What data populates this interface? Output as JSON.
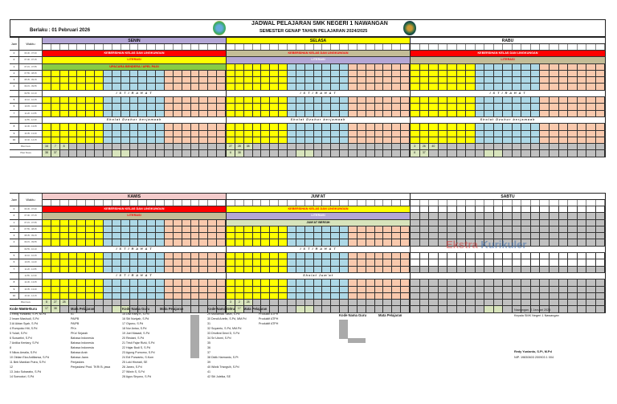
{
  "header": {
    "berlaku": "Berlaku : 01 Pebruari 2026",
    "title": "JADWAL PELAJARAN SMK NEGERI 1 NAWANGAN",
    "subtitle": "SEMESTER GENAP TAHUN PELAJARAN 2024/2025"
  },
  "columns": {
    "jam": "Jam",
    "waktu": "Waktu"
  },
  "days_top": [
    "SENIN",
    "SELASA",
    "RABU"
  ],
  "days_bottom": [
    "KAMIS",
    "JUM'AT",
    "SABTU"
  ],
  "bands": {
    "kebersihan": "KEBERSIHAN KELAS DAN LINGKUNGAN",
    "literasi": "LITERASI",
    "upacara": "UPACARA BENDERA / APEL PAGI",
    "istirahat": "I S T I R A H A T",
    "sholat_dzuhur": "Sholat Dzuhur berjamaah",
    "jumat_bersih": "JUM'AT BERSIH",
    "sholat_jumat": "Sholat Jum'at"
  },
  "times": [
    "06.30 - 07.00",
    "07.00 - 07.15",
    "07.15 - 07.55",
    "07.55 - 08.35",
    "08.35 - 09.15",
    "09.15 - 09.55",
    "09.55 - 10.10",
    "10.10 - 10.45",
    "10.45 - 11.20",
    "11.20 - 11.55",
    "11.55 - 12.30",
    "12.30 - 13.05",
    "13.05 - 13.40",
    "13.40 - 14.15"
  ],
  "jam": [
    "0",
    "0",
    "1",
    "2",
    "3",
    "4",
    "",
    "5",
    "6",
    "7",
    "",
    "8",
    "9",
    "10"
  ],
  "piket": {
    "guru": "Piket Guru",
    "siswa": "Piket Siswa",
    "senin_guru": [
      "16",
      "7",
      "8"
    ],
    "senin_siswa": [
      "38",
      "37"
    ],
    "selasa_guru": [
      "27",
      "28",
      "38"
    ],
    "selasa_siswa": [
      "6",
      "38"
    ],
    "rabu_guru": [
      "3",
      "26",
      "40"
    ],
    "rabu_siswa": [
      "6",
      "37"
    ],
    "kamis_guru": [
      "8",
      "27",
      "28"
    ],
    "kamis_siswa": [
      "17",
      "38"
    ],
    "jumat_guru": [
      "3",
      "2",
      "28"
    ],
    "jumat_siswa": [
      "6",
      "17"
    ]
  },
  "watermark": {
    "a": "Ekstra",
    "b": "Kurikuler"
  },
  "legend": {
    "kode": "Kode",
    "nama": "Nama Guru",
    "mapel": "Mata Pelajaran",
    "col1": [
      "1 Redy Yunianto, S.Pi, M.Pd",
      "2 Imam Mashudi, S.Pd",
      "3 Al Aktan Syah, S.Pd",
      "4 Rumpoko Hiti, S.Pd",
      "5 Yulati, S.Pd",
      "6 Suwartini, S.Pd",
      "7 Ardika Kentary, S.Pd",
      "8",
      "9 Nikos Amalia, S.Pd",
      "10 Oktian Eka Ardiliansa, S.Pd",
      "11 Beb Mardian Putra, S.Pd",
      "12",
      "13 Joko Subarabo, S.Pd",
      "14 Somoduri, S.Pd"
    ],
    "col1m": [
      "IG",
      "PAIPB",
      "PAIPB",
      "PKn",
      "PKn/ Sejarah",
      "Bahasa Indonesia",
      "Bahasa Indonesia",
      "Bahasa Indonesia",
      "Bahasa Arab",
      "Bahasa Jawa",
      "Penjaskes",
      "Penjaskes/ Prod. TKR/ B. jawa",
      "",
      ""
    ],
    "col2": [
      "15 Dwi Rany K, S.Pd",
      "16 Siti Nuriyah, S.Pd",
      "17 Giyono, S.Pd",
      "18 Nur Anisa, S.Pd",
      "19 Joel Masadi, S.Pd",
      "20 Rindani, S.Pd",
      "21 Tristi Fajar Rizki, S.Pd",
      "22 Hajar Budi S, S.Pd",
      "23 Agung Purnomo, S.Pd",
      "24 Edi Purwanto, S.Kom",
      "25 Luki Hismati, SE",
      "26 Janeo, S.Pd",
      "27 Wiwin S, S.Pd",
      "28 Agus Siryono, S.Pd"
    ],
    "col3": [
      "29 Muhamad Yasin, S.Pd",
      "30 Dendi Ariefin, S.Pd, MM.Pd",
      "31",
      "32 Suyamto, S.Pd, MM.Pd",
      "33 Dhofirat Dewi D, S.Pd",
      "34 Sri Utomi, S.Pd",
      "35",
      "36",
      "37",
      "38 Didik Harmanto, S.Pt",
      "39",
      "40 Wiwik Trisngsih, S.Pd",
      "41",
      "42 Siti Juleika, SE"
    ],
    "col3m": [
      "",
      "",
      "",
      "",
      "",
      "",
      "",
      "",
      "Produktif ATPH",
      "Produktif ATPH",
      "Produktif ATPH",
      "",
      "",
      ""
    ]
  },
  "signature": {
    "place": "Nawangan, 2 Januari 2025",
    "role": "Kepala SMK Negeri 1 Nawangan",
    "name": "Redy Yunianto, S.Pi, M.Pd",
    "nip": "NIP. 19830603 200903 1 004"
  }
}
